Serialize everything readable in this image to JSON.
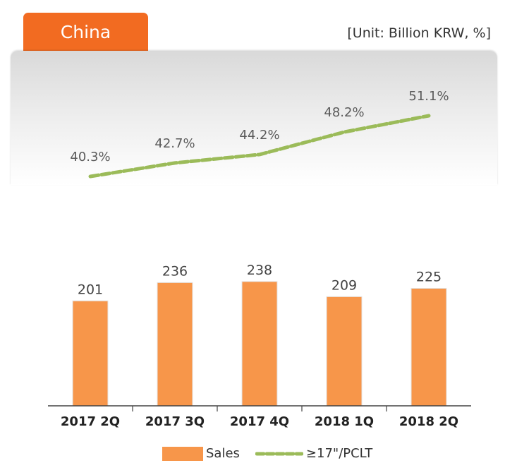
{
  "header": {
    "tab_label": "China",
    "unit_label": "[Unit: Billion KRW, %]"
  },
  "chart_data": {
    "type": "bar",
    "categories": [
      "2017 2Q",
      "2017 3Q",
      "2017 4Q",
      "2018 1Q",
      "2018 2Q"
    ],
    "series": [
      {
        "name": "Sales",
        "type": "bar",
        "values": [
          201,
          236,
          238,
          209,
          225
        ],
        "value_labels": [
          "201",
          "236",
          "238",
          "209",
          "225"
        ],
        "color": "#f7964a"
      },
      {
        "name": "≥17\"/PCLT",
        "type": "line",
        "values": [
          40.3,
          42.7,
          44.2,
          48.2,
          51.1
        ],
        "value_labels": [
          "40.3%",
          "42.7%",
          "44.2%",
          "48.2%",
          "51.1%"
        ],
        "color": "#9bbb59",
        "dashed": true
      }
    ],
    "legend_position": "bottom",
    "grid": false
  },
  "colors": {
    "accent": "#f26b21",
    "bar": "#f7964a",
    "line": "#9bbb59"
  }
}
